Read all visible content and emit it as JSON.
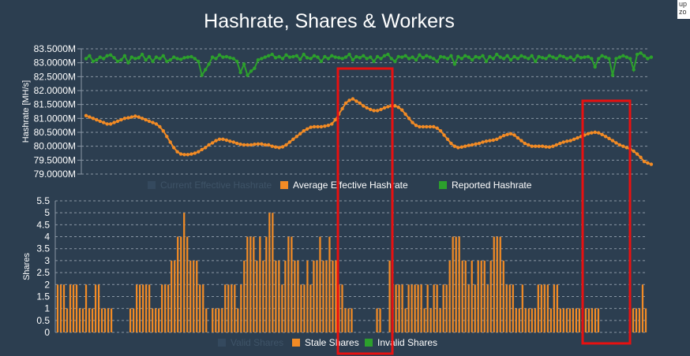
{
  "title": "Hashrate, Shares & Workers",
  "corner_text": [
    "up",
    "zo"
  ],
  "colors": {
    "background": "#2c3e50",
    "grid": "#8a97a5",
    "text": "#ffffff",
    "current": "#34495e",
    "average": "#f28b25",
    "reported": "#2ca02c",
    "highlight": "#e81010"
  },
  "chart_data": [
    {
      "type": "line",
      "title": "Hashrate, Shares & Workers",
      "ylabel": "Hashrate [MH/s]",
      "yticks": [
        "83.5000M",
        "83.0000M",
        "82.5000M",
        "82.0000M",
        "81.5000M",
        "81.0000M",
        "80.5000M",
        "80.0000M",
        "79.5000M",
        "79.0000M"
      ],
      "ylim": [
        79.0,
        83.5
      ],
      "n_points": 160,
      "legend": [
        "Current Effective Hashrate",
        "Average Effective Hashrate",
        "Reported Hashrate"
      ],
      "legend_position": "bottom",
      "series": [
        {
          "name": "Current Effective Hashrate",
          "values": [],
          "hidden": true
        },
        {
          "name": "Average Effective Hashrate",
          "values": [
            81.1,
            81.05,
            81.0,
            80.95,
            80.9,
            80.85,
            80.8,
            80.8,
            80.85,
            80.9,
            80.95,
            81.0,
            81.02,
            81.05,
            81.08,
            81.05,
            81.0,
            80.95,
            80.9,
            80.85,
            80.8,
            80.7,
            80.55,
            80.35,
            80.15,
            79.95,
            79.8,
            79.72,
            79.7,
            79.7,
            79.72,
            79.75,
            79.8,
            79.88,
            79.95,
            80.05,
            80.12,
            80.2,
            80.25,
            80.25,
            80.22,
            80.18,
            80.15,
            80.1,
            80.07,
            80.05,
            80.05,
            80.05,
            80.07,
            80.08,
            80.08,
            80.05,
            80.05,
            80.0,
            79.97,
            79.95,
            79.98,
            80.05,
            80.15,
            80.25,
            80.35,
            80.45,
            80.55,
            80.62,
            80.68,
            80.7,
            80.7,
            80.7,
            80.72,
            80.75,
            80.8,
            80.95,
            81.15,
            81.35,
            81.55,
            81.65,
            81.7,
            81.62,
            81.55,
            81.45,
            81.38,
            81.32,
            81.28,
            81.28,
            81.32,
            81.38,
            81.42,
            81.45,
            81.45,
            81.4,
            81.3,
            81.15,
            81.0,
            80.85,
            80.75,
            80.7,
            80.7,
            80.7,
            80.7,
            80.7,
            80.65,
            80.55,
            80.4,
            80.25,
            80.1,
            80.0,
            79.95,
            79.97,
            80.0,
            80.03,
            80.05,
            80.08,
            80.1,
            80.15,
            80.18,
            80.2,
            80.22,
            80.25,
            80.32,
            80.38,
            80.42,
            80.45,
            80.4,
            80.3,
            80.2,
            80.1,
            80.05,
            80.0,
            80.0,
            80.0,
            80.0,
            79.98,
            79.97,
            80.0,
            80.05,
            80.1,
            80.15,
            80.18,
            80.2,
            80.25,
            80.3,
            80.35,
            80.4,
            80.45,
            80.48,
            80.5,
            80.48,
            80.42,
            80.35,
            80.28,
            80.2,
            80.12,
            80.05,
            80.0,
            79.95,
            79.9,
            79.82,
            79.72,
            79.6,
            79.45,
            79.4,
            79.35
          ]
        },
        {
          "name": "Reported Hashrate",
          "values": [
            83.15,
            83.25,
            83.05,
            83.1,
            83.2,
            83.15,
            83.25,
            83.28,
            83.18,
            83.05,
            83.1,
            83.25,
            83.0,
            83.2,
            83.15,
            83.18,
            83.3,
            83.1,
            83.22,
            83.05,
            83.2,
            83.15,
            83.25,
            83.05,
            83.1,
            83.2,
            83.15,
            83.12,
            83.18,
            83.2,
            83.22,
            83.15,
            83.05,
            82.55,
            82.75,
            82.95,
            83.2,
            83.15,
            83.28,
            83.2,
            83.22,
            83.18,
            83.15,
            83.05,
            82.65,
            82.95,
            82.55,
            82.7,
            82.8,
            83.1,
            83.15,
            83.2,
            83.25,
            83.3,
            83.18,
            83.22,
            83.15,
            83.28,
            83.2,
            83.22,
            83.25,
            83.12,
            83.3,
            83.18,
            83.15,
            83.25,
            83.2,
            83.05,
            83.22,
            83.15,
            83.25,
            83.2,
            83.18,
            83.15,
            83.2,
            83.3,
            83.1,
            83.22,
            83.18,
            83.25,
            83.15,
            83.2,
            83.05,
            83.22,
            83.15,
            83.25,
            83.3,
            83.15,
            83.05,
            83.22,
            83.2,
            83.25,
            83.15,
            83.2,
            83.1,
            83.28,
            83.18,
            83.25,
            83.2,
            83.15,
            83.05,
            83.22,
            83.2,
            83.15,
            83.25,
            82.95,
            83.22,
            83.15,
            83.25,
            83.2,
            83.1,
            83.22,
            83.18,
            83.25,
            83.05,
            83.22,
            83.15,
            83.3,
            83.2,
            83.15,
            83.25,
            83.1,
            83.22,
            83.15,
            83.25,
            83.2,
            83.15,
            83.25,
            83.05,
            83.22,
            83.18,
            83.15,
            83.25,
            83.2,
            83.15,
            83.25,
            83.22,
            83.15,
            83.2,
            83.1,
            83.25,
            83.18,
            83.2,
            83.22,
            83.15,
            82.85,
            83.15,
            83.25,
            83.2,
            83.15,
            82.55,
            83.15,
            83.2,
            83.25,
            83.2,
            83.15,
            82.75,
            83.3,
            83.35,
            83.25,
            83.15,
            83.2
          ]
        }
      ]
    },
    {
      "type": "bar",
      "ylabel": "Shares",
      "yticks": [
        "5.5",
        "5",
        "4.5",
        "4",
        "3.5",
        "3",
        "2.5",
        "2",
        "1.5",
        "1",
        "0.5",
        "0"
      ],
      "ylim": [
        0,
        5.5
      ],
      "legend": [
        "Valid Shares",
        "Stale Shares",
        "Invalid Shares"
      ],
      "legend_position": "bottom",
      "series": [
        {
          "name": "Valid Shares",
          "values": [],
          "hidden": true
        },
        {
          "name": "Stale Shares",
          "values": [
            2,
            2,
            2,
            1,
            2,
            2,
            2,
            1,
            1,
            2,
            1,
            1,
            2,
            2,
            1,
            1,
            1,
            1,
            0,
            0,
            0,
            0,
            0,
            1,
            1,
            2,
            2,
            2,
            2,
            2,
            1,
            1,
            1,
            2,
            2,
            2,
            3,
            3,
            4,
            4,
            5,
            4,
            3,
            3,
            3,
            2,
            2,
            1,
            0,
            1,
            1,
            1,
            1,
            2,
            2,
            2,
            2,
            1,
            2,
            3,
            4,
            4,
            4,
            3,
            4,
            3,
            4,
            5,
            5,
            3,
            3,
            2,
            3,
            4,
            4,
            3,
            3,
            2,
            2,
            3,
            2,
            3,
            3,
            4,
            3,
            3,
            4,
            3,
            3,
            2,
            2,
            1,
            1,
            1,
            0,
            0,
            0,
            0,
            0,
            0,
            0,
            1,
            1,
            0,
            0,
            3,
            2,
            2,
            2,
            2,
            1,
            2,
            2,
            2,
            2,
            2,
            1,
            2,
            1,
            2,
            2,
            1,
            2,
            2,
            3,
            4,
            4,
            4,
            3,
            3,
            2,
            3,
            2,
            3,
            3,
            3,
            2,
            3,
            4,
            4,
            4,
            3,
            2,
            2,
            2,
            1,
            1,
            2,
            1,
            1,
            1,
            1,
            2,
            2,
            2,
            2,
            1,
            2,
            2,
            1,
            1,
            1,
            1,
            1,
            1,
            1,
            1,
            1,
            1,
            1,
            1,
            1,
            0,
            0,
            0,
            0,
            0,
            0,
            0,
            0,
            0,
            1,
            1,
            1,
            1,
            2,
            1
          ]
        },
        {
          "name": "Invalid Shares",
          "values": [],
          "hidden": true
        }
      ]
    }
  ]
}
